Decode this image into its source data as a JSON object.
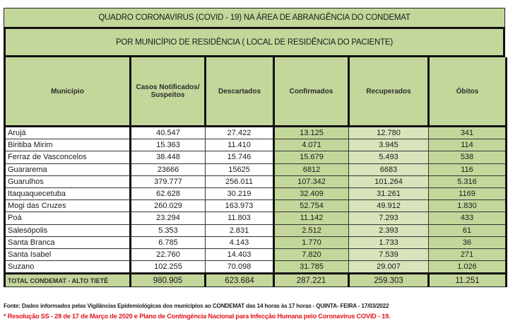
{
  "title": "QUADRO CORONAVIRUS (COVID - 19) NA ÁREA DE ABRANGÊNCIA DO CONDEMAT",
  "subtitle": "POR MUNICÍPIO DE RESIDÊNCIA ( LOCAL DE RESIDÊNCIA DO PACIENTE)",
  "colors": {
    "header_green": "#c4d79b",
    "recuperados_green": "#d8e4bc",
    "resolution_red": "#e0141e"
  },
  "table": {
    "headers": [
      "Município",
      "Casos Notificados/ Suspeitos",
      "Descartados",
      "Confirmados",
      "Recuperados",
      "Óbitos"
    ],
    "rows": [
      {
        "municipio": "Arujá",
        "casos": "40.547",
        "descartados": "27.422",
        "confirmados": "13.125",
        "recuperados": "12.780",
        "obitos": "341"
      },
      {
        "municipio": "Biritiba Mirim",
        "casos": "15.363",
        "descartados": "11.410",
        "confirmados": "4.071",
        "recuperados": "3.945",
        "obitos": "114"
      },
      {
        "municipio": "Ferraz de Vasconcelos",
        "casos": "38.448",
        "descartados": "15.746",
        "confirmados": "15.679",
        "recuperados": "5.493",
        "obitos": "538"
      },
      {
        "municipio": "Guararema",
        "casos": "23666",
        "descartados": "15625",
        "confirmados": "6812",
        "recuperados": "6683",
        "obitos": "116"
      },
      {
        "municipio": "Guarulhos",
        "casos": "379.777",
        "descartados": "256.011",
        "confirmados": "107.342",
        "recuperados": "101.264",
        "obitos": "5.316"
      },
      {
        "municipio": "Itaquaquecetuba",
        "casos": "62.628",
        "descartados": "30.219",
        "confirmados": "32.409",
        "recuperados": "31.261",
        "obitos": "1169"
      },
      {
        "municipio": "Mogi das Cruzes",
        "casos": "260.029",
        "descartados": "163.973",
        "confirmados": "52.754",
        "recuperados": "49.912",
        "obitos": "1.830"
      },
      {
        "municipio": "Poá",
        "casos": "23.294",
        "descartados": "11.803",
        "confirmados": "11.142",
        "recuperados": "7.293",
        "obitos": "433"
      },
      {
        "municipio": "Salesópolis",
        "casos": "5.353",
        "descartados": "2.831",
        "confirmados": "2.512",
        "recuperados": "2.393",
        "obitos": "61"
      },
      {
        "municipio": "Santa Branca",
        "casos": "6.785",
        "descartados": "4.143",
        "confirmados": "1.770",
        "recuperados": "1.733",
        "obitos": "36"
      },
      {
        "municipio": "Santa Isabel",
        "casos": "22.760",
        "descartados": "14.403",
        "confirmados": "7.820",
        "recuperados": "7.539",
        "obitos": "271"
      },
      {
        "municipio": "Suzano",
        "casos": "102.255",
        "descartados": "70.098",
        "confirmados": "31.785",
        "recuperados": "29.007",
        "obitos": "1.026"
      }
    ],
    "total": {
      "municipio": "TOTAL CONDEMAT - ALTO TIETÊ",
      "casos": "980.905",
      "descartados": "623.684",
      "confirmados": "287.221",
      "recuperados": "259.303",
      "obitos": "11.251"
    }
  },
  "footnote": "Fonte: Dados informados pelas Vigilâncias Epidemiológicas dos municípios ao CONDEMAT das 14 horas às 17 horas - QUINTA- FEIRA - 17/03/2022",
  "resolution": "* Resolução SS - 28 de 17 de Março de 2020 e Plano de Contingência Nacional para Infecção Humana pelo Coronavírus COVID - 19."
}
